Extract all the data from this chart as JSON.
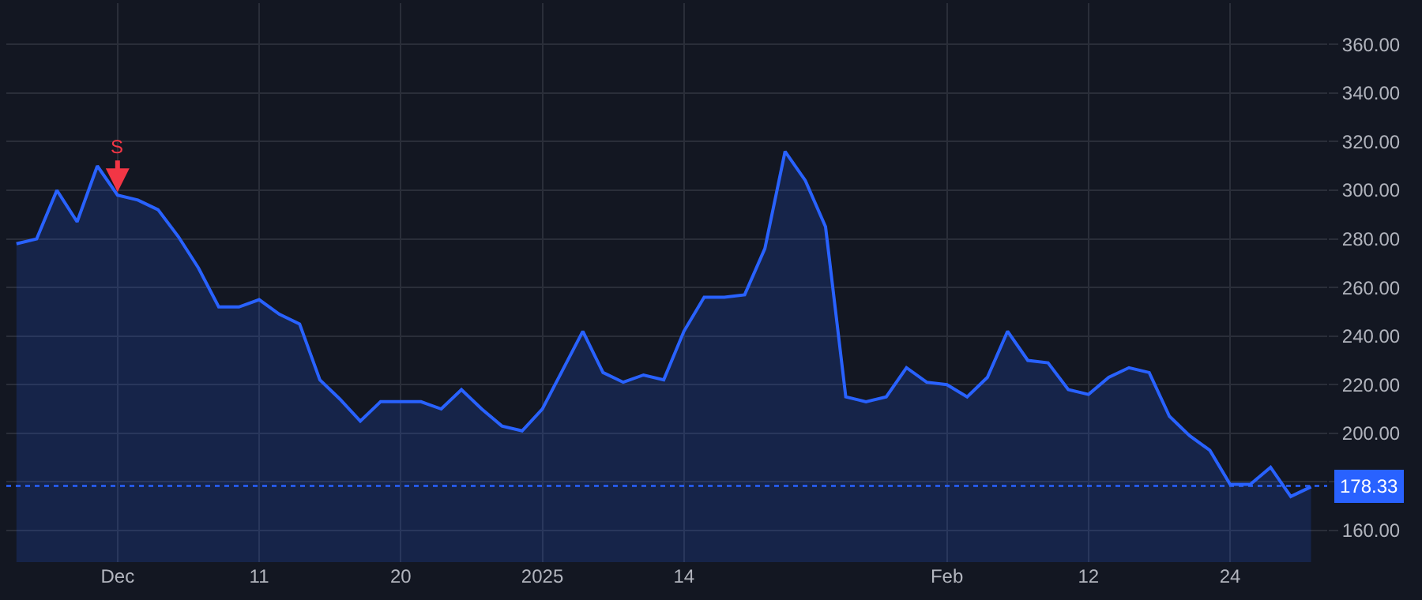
{
  "chart_data": {
    "type": "area",
    "categories": [
      null,
      null,
      null,
      null,
      null,
      "Dec",
      null,
      null,
      null,
      null,
      null,
      null,
      "11",
      null,
      null,
      null,
      null,
      null,
      null,
      "20",
      null,
      null,
      null,
      null,
      null,
      null,
      "2025",
      null,
      null,
      null,
      null,
      null,
      null,
      "14",
      null,
      null,
      null,
      null,
      null,
      null,
      null,
      null,
      null,
      null,
      null,
      null,
      "Feb",
      null,
      null,
      null,
      null,
      null,
      null,
      "12",
      null,
      null,
      null,
      null,
      null,
      null,
      "24",
      null,
      null,
      null,
      null
    ],
    "series": [
      {
        "color": "#2962ff",
        "values": [
          278,
          280,
          300,
          287,
          310,
          298,
          296,
          292,
          281,
          268,
          252,
          252,
          255,
          249,
          245,
          222,
          214,
          205,
          213,
          213,
          213,
          210,
          218,
          210,
          203,
          201,
          210,
          226,
          242,
          225,
          221,
          224,
          222,
          242,
          256,
          256,
          257,
          276,
          316,
          304,
          285,
          215,
          213,
          215,
          227,
          221,
          220,
          215,
          223,
          242,
          230,
          229,
          218,
          216,
          223,
          227,
          225,
          207,
          199,
          193,
          179,
          179,
          186,
          174,
          178
        ]
      }
    ],
    "ylim": [
      147,
      377
    ],
    "yticks": [
      {
        "value": 160,
        "label": "160.00"
      },
      {
        "value": 180,
        "label": null
      },
      {
        "value": 200,
        "label": "200.00"
      },
      {
        "value": 220,
        "label": "220.00"
      },
      {
        "value": 240,
        "label": "240.00"
      },
      {
        "value": 260,
        "label": "260.00"
      },
      {
        "value": 280,
        "label": "280.00"
      },
      {
        "value": 300,
        "label": "300.00"
      },
      {
        "value": 320,
        "label": "320.00"
      },
      {
        "value": 340,
        "label": "340.00"
      },
      {
        "value": 360,
        "label": "360.00"
      }
    ],
    "ref_lines": [
      {
        "axis": "y",
        "value": 178.33,
        "label": "178.33",
        "color": "#2962ff",
        "line_style": "dotted"
      }
    ],
    "annotations": [
      {
        "text": "S",
        "x": "Dec",
        "y": 298
      }
    ],
    "grid": true,
    "marker": "none",
    "line_style": "solid"
  }
}
